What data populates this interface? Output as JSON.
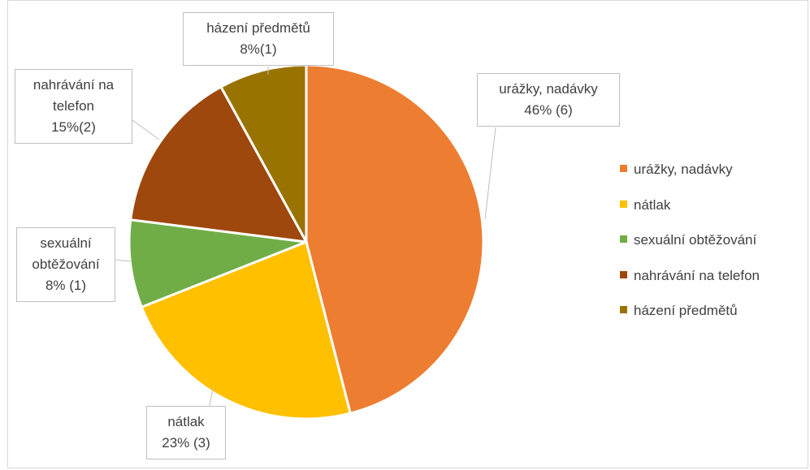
{
  "chart_data": {
    "type": "pie",
    "categories": [
      "urážky, nadávky",
      "nátlak",
      "sexuální obtěžování",
      "nahrávání na telefon",
      "házení předmětů"
    ],
    "values": [
      46,
      23,
      8,
      15,
      8
    ],
    "value_labels": [
      "46% (6)",
      "23% (3)",
      "8% (1)",
      "15%(2)",
      "8%(1)"
    ],
    "colors": [
      "#ed7d31",
      "#ffc000",
      "#70ad47",
      "#9e480e",
      "#997300"
    ],
    "legend": "right"
  }
}
